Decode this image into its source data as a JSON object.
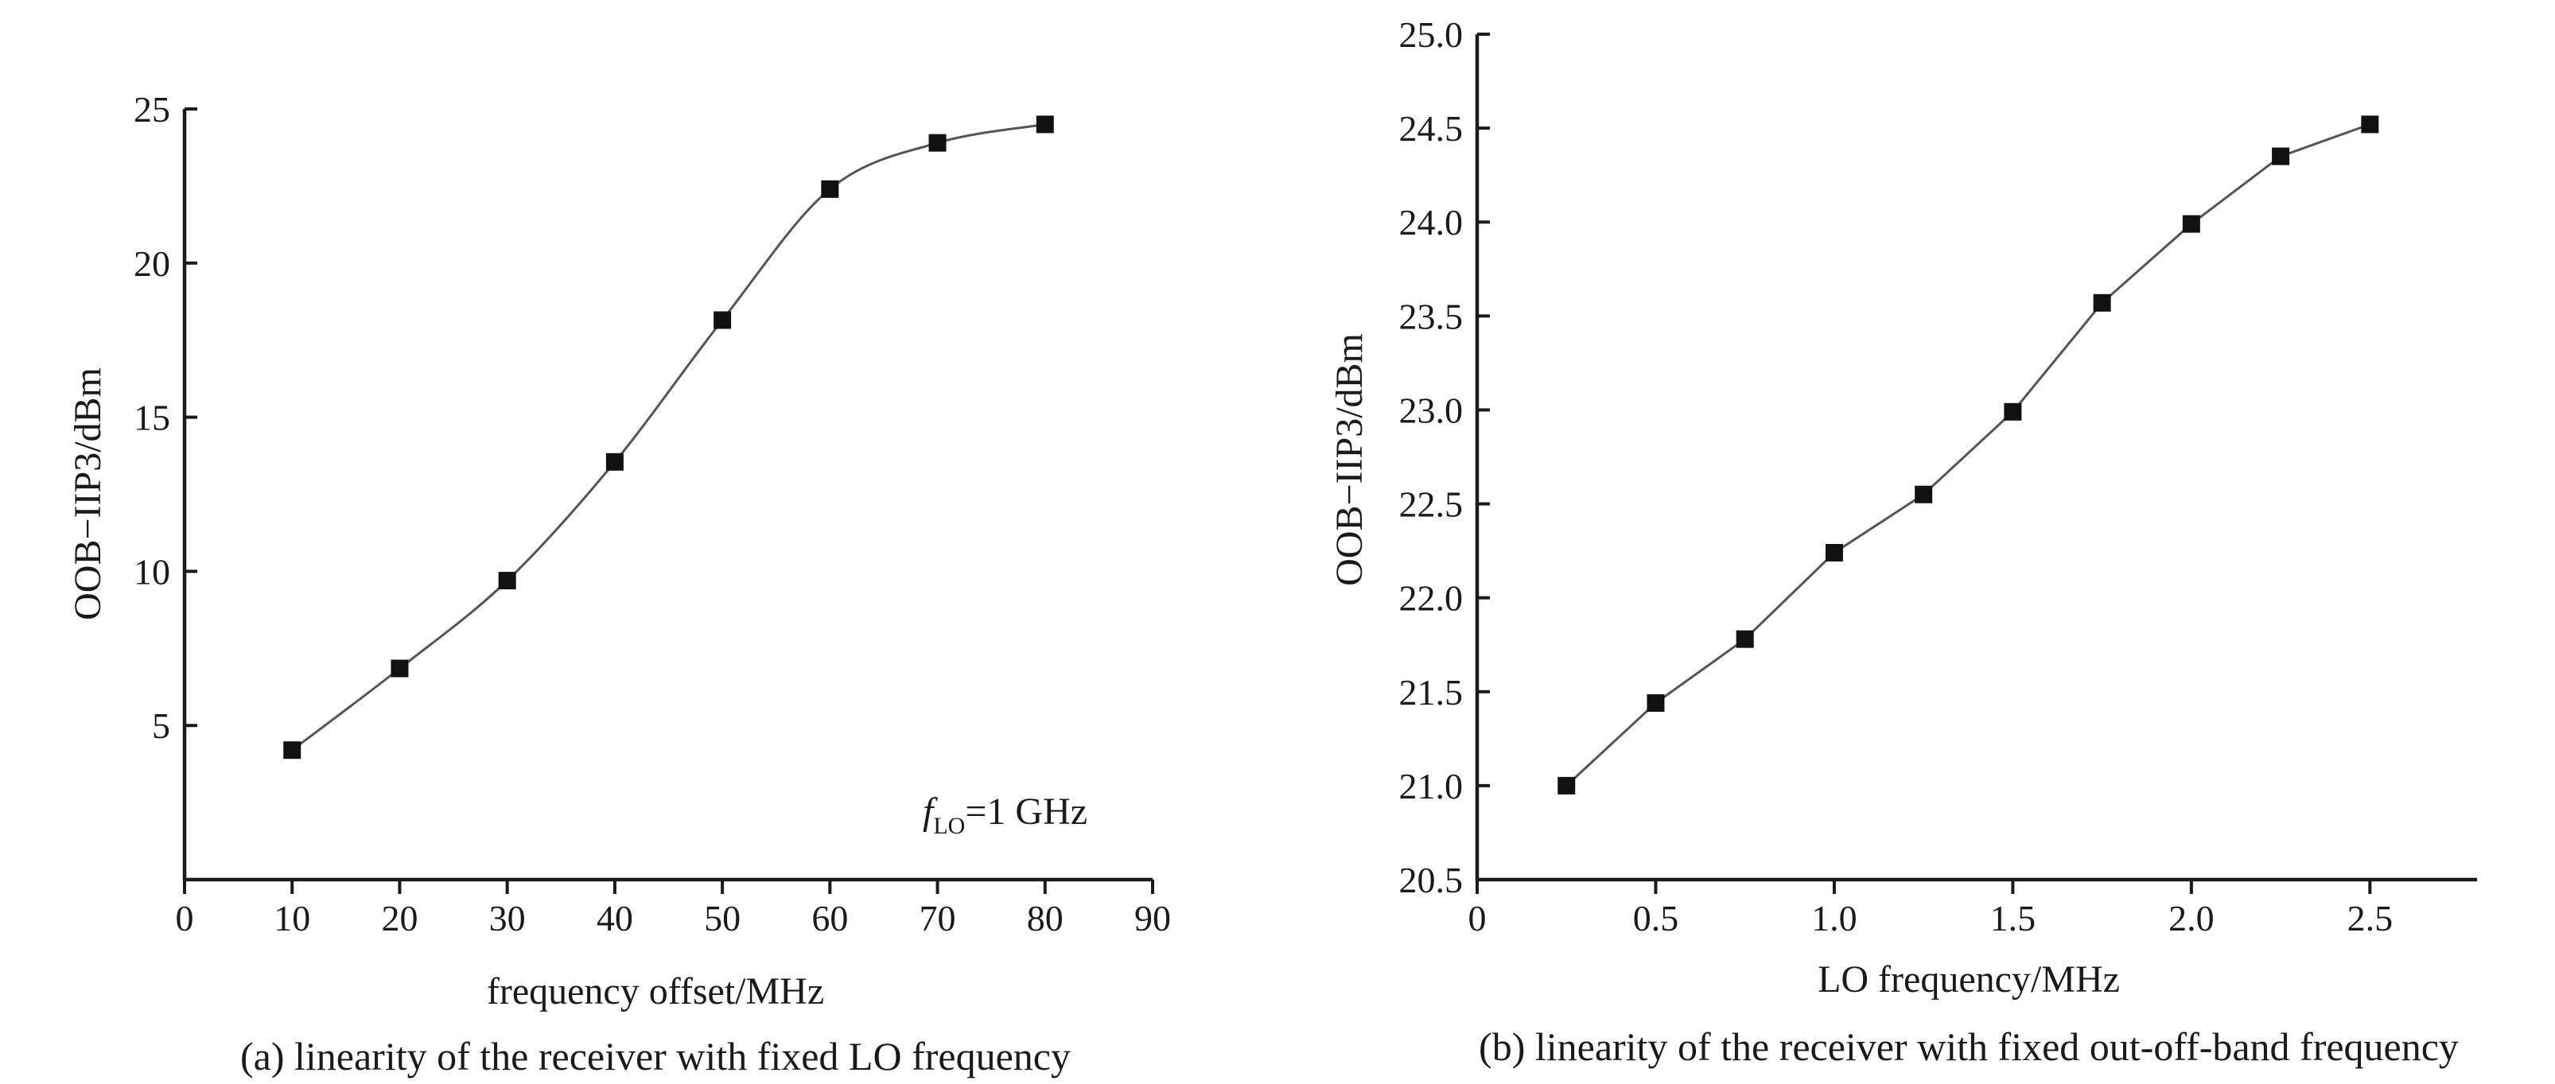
{
  "chart_data": [
    {
      "type": "line",
      "caption": "(a) linearity of the receiver with fixed LO frequency",
      "xlabel": "frequency offset/MHz",
      "ylabel": "OOB−IIP3/dBm",
      "xlim": [
        0,
        90
      ],
      "ylim": [
        0,
        25
      ],
      "xticks": [
        "0",
        "10",
        "20",
        "30",
        "40",
        "50",
        "60",
        "70",
        "80",
        "90"
      ],
      "yticks": [
        "5",
        "10",
        "15",
        "20",
        "25"
      ],
      "annotation": {
        "symbol": "f",
        "subscript": "LO",
        "text": "=1 GHz"
      },
      "smooth": true,
      "series": [
        {
          "x": [
            10,
            20,
            30,
            40,
            50,
            60,
            70,
            80
          ],
          "y": [
            4.2,
            6.85,
            9.7,
            13.55,
            18.15,
            22.4,
            23.9,
            24.5
          ]
        }
      ]
    },
    {
      "type": "line",
      "caption": "(b) linearity of the receiver with fixed out-off-band frequency",
      "xlabel": "LO frequency/MHz",
      "ylabel": "OOB−IIP3/dBm",
      "xlim": [
        0,
        2.8
      ],
      "ylim": [
        20.5,
        25.0
      ],
      "xticks": [
        "0",
        "0.5",
        "1.0",
        "1.5",
        "2.0",
        "2.5"
      ],
      "yticks": [
        "20.5",
        "21.0",
        "21.5",
        "22.0",
        "22.5",
        "23.0",
        "23.5",
        "24.0",
        "24.5",
        "25.0"
      ],
      "smooth": false,
      "series": [
        {
          "x": [
            0.25,
            0.5,
            0.75,
            1.0,
            1.25,
            1.5,
            1.75,
            2.0,
            2.25,
            2.5
          ],
          "y": [
            21.0,
            21.44,
            21.78,
            22.24,
            22.55,
            22.99,
            23.57,
            23.99,
            24.35,
            24.52
          ]
        }
      ]
    }
  ]
}
